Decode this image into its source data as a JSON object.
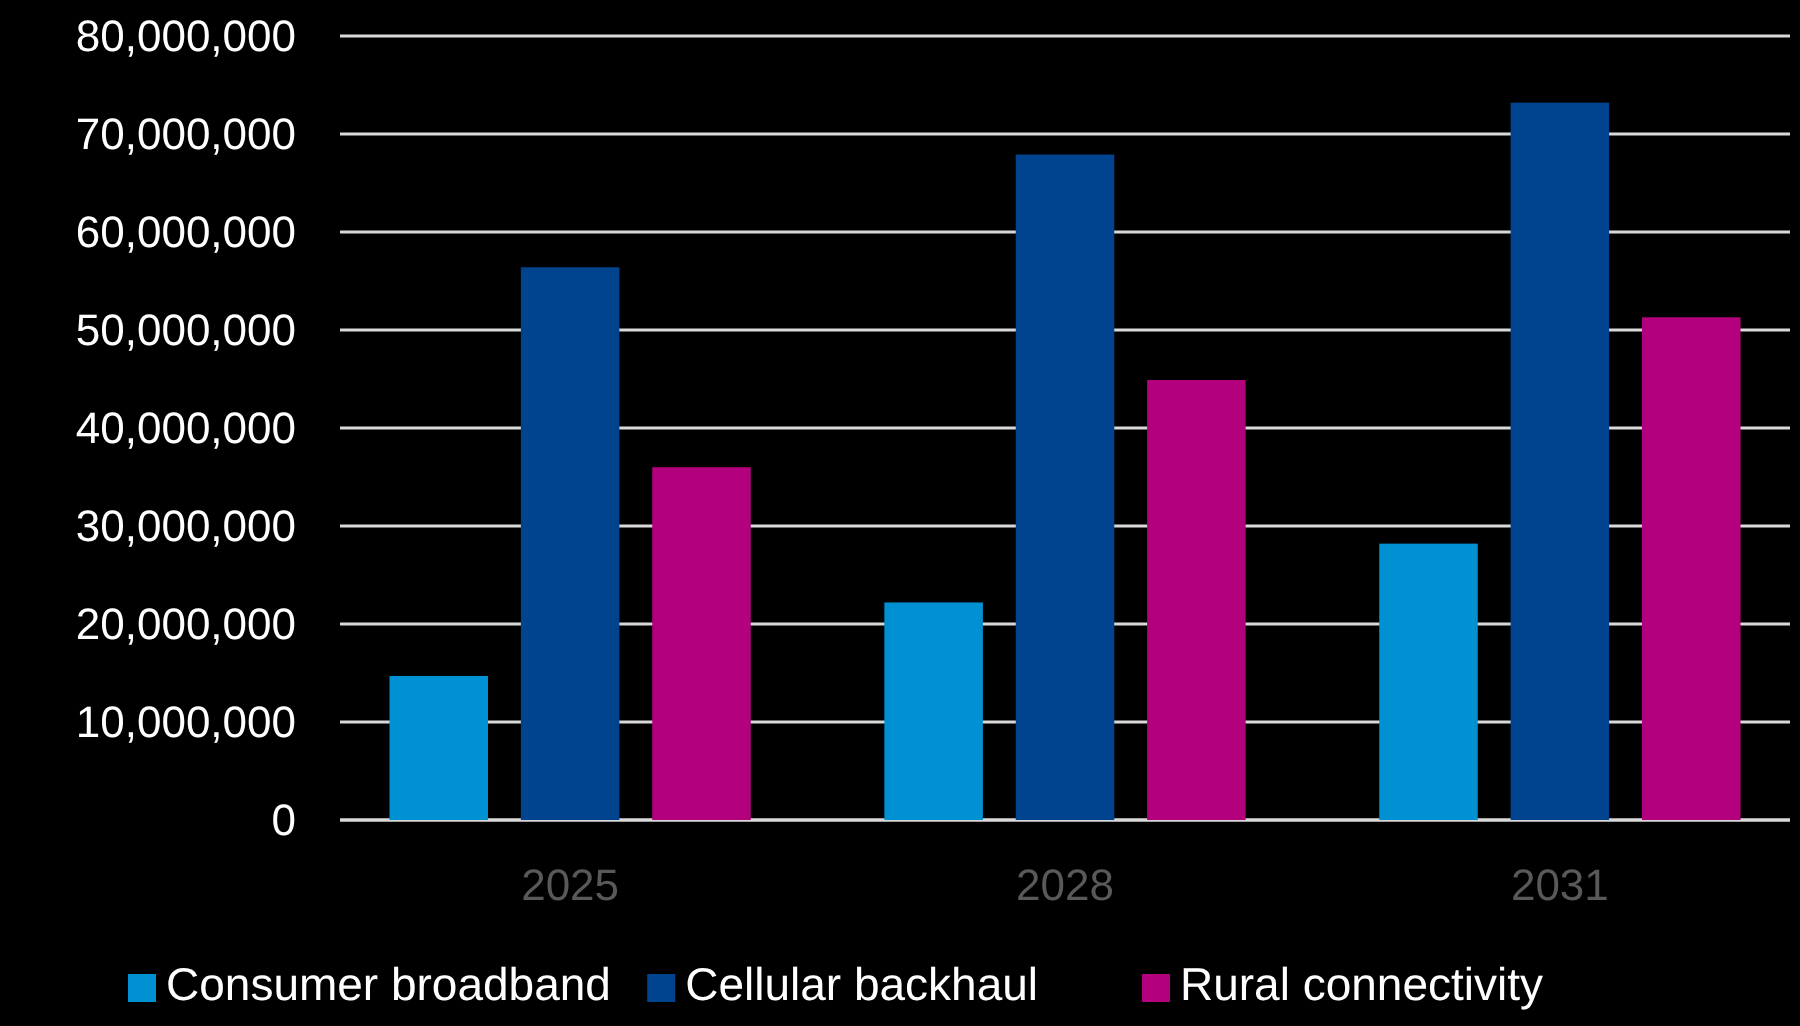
{
  "chart_data": {
    "type": "bar",
    "categories": [
      "2025",
      "2028",
      "2031"
    ],
    "series": [
      {
        "name": "Consumer broadband",
        "color": "#0091d3",
        "values": [
          14700000,
          22200000,
          28200000
        ]
      },
      {
        "name": "Cellular backhaul",
        "color": "#00448f",
        "values": [
          56400000,
          67900000,
          73200000
        ]
      },
      {
        "name": "Rural connectivity",
        "color": "#b3007d",
        "values": [
          36000000,
          44900000,
          51300000
        ]
      }
    ],
    "ylim": [
      0,
      80000000
    ],
    "yticks": [
      {
        "value": 0,
        "label": "0"
      },
      {
        "value": 10000000,
        "label": "10,000,000"
      },
      {
        "value": 20000000,
        "label": "20,000,000"
      },
      {
        "value": 30000000,
        "label": "30,000,000"
      },
      {
        "value": 40000000,
        "label": "40,000,000"
      },
      {
        "value": 50000000,
        "label": "50,000,000"
      },
      {
        "value": 60000000,
        "label": "60,000,000"
      },
      {
        "value": 70000000,
        "label": "70,000,000"
      },
      {
        "value": 80000000,
        "label": "80,000,000"
      }
    ],
    "grid": "y",
    "legend": "bottom"
  }
}
